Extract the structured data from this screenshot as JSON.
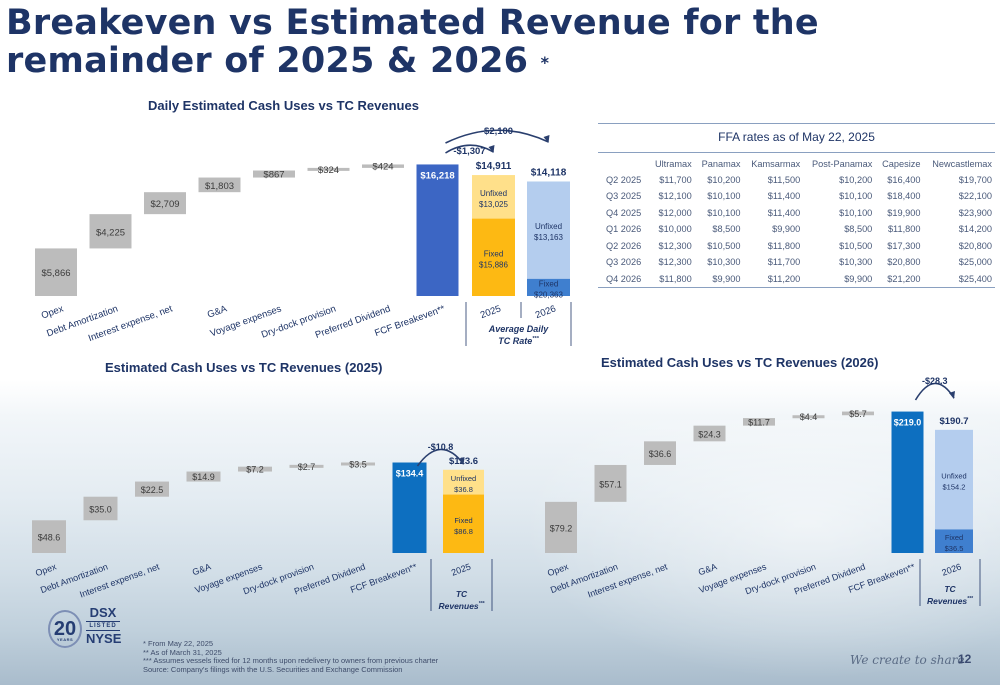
{
  "page": {
    "title_line1": "Breakeven vs Estimated Revenue for the",
    "title_line2": "remainder of 2025 & 2026",
    "title_mark": "*",
    "tagline": "We create to share",
    "page_number": "12",
    "notes": [
      "* From May 22, 2025",
      "** As of March 31, 2025",
      "*** Assumes vessels fixed for 12 months upon redelivery to owners from previous charter",
      "Source: Company's filings with the U.S. Securities and Exchange Commission"
    ],
    "logo": {
      "years": "20",
      "years_caption": "YEARS",
      "ticker": "DSX",
      "listed": "LISTED",
      "exchange": "NYSE"
    }
  },
  "ffa": {
    "title": "FFA rates as of May 22, 2025",
    "columns": [
      "",
      "Ultramax",
      "Panamax",
      "Kamsarmax",
      "Post-Panamax",
      "Capesize",
      "Newcastlemax"
    ],
    "rows": [
      [
        "Q2 2025",
        "$11,700",
        "$10,200",
        "$11,500",
        "$10,200",
        "$16,400",
        "$19,700"
      ],
      [
        "Q3 2025",
        "$12,100",
        "$10,100",
        "$11,400",
        "$10,100",
        "$18,400",
        "$22,100"
      ],
      [
        "Q4 2025",
        "$12,000",
        "$10,100",
        "$11,400",
        "$10,100",
        "$19,900",
        "$23,900"
      ],
      [
        "Q1 2026",
        "$10,000",
        "$8,500",
        "$9,900",
        "$8,500",
        "$11,800",
        "$14,200"
      ],
      [
        "Q2 2026",
        "$12,300",
        "$10,500",
        "$11,800",
        "$10,500",
        "$17,300",
        "$20,800"
      ],
      [
        "Q3 2026",
        "$12,300",
        "$10,300",
        "$11,700",
        "$10,300",
        "$20,800",
        "$25,000"
      ],
      [
        "Q4 2026",
        "$11,800",
        "$9,900",
        "$11,200",
        "$9,900",
        "$21,200",
        "$25,400"
      ]
    ]
  },
  "colors": {
    "cost": "#bcbcbc",
    "breakeven": "#3c66c4",
    "breakeven_dark": "#0d6fc0",
    "fixed": "#fdb913",
    "unfixed": "#ffe08a",
    "fixed_blue": "#3f7fcf",
    "unfixed_blue": "#b4cdee",
    "arc": "#2a3f6e",
    "text": "#1e3466"
  },
  "chart_data": [
    {
      "type": "bar",
      "subtype": "waterfall",
      "title": "Daily Estimated Cash Uses  vs TC Revenues",
      "categories": [
        "Opex",
        "Debt Amortization",
        "Interest expense, net",
        "G&A",
        "Voyage expenses",
        "Dry-dock provision",
        "Preferred Dividend",
        "FCF Breakeven**"
      ],
      "values": [
        5866,
        4225,
        2709,
        1803,
        867,
        324,
        424,
        16218
      ],
      "value_labels": [
        "$5,866",
        "$4,225",
        "$2,709",
        "$1,803",
        "$867",
        "$324",
        "$424",
        "$16,218"
      ],
      "total_index": 7,
      "ylim": [
        0,
        18000
      ],
      "revenue_group_label": "Average Daily TC Rate***",
      "revenues": [
        {
          "category": "2025",
          "total": 14911,
          "total_label": "$14,911",
          "fixed": 15886,
          "fixed_caption": "Fixed",
          "fixed_label": "$15,886",
          "unfixed": 13025,
          "unfixed_caption": "Unfixed",
          "unfixed_label": "$13,025",
          "fixed_share": 0.64,
          "scheme": "yellow"
        },
        {
          "category": "2026",
          "total": 14118,
          "total_label": "$14,118",
          "fixed": 20363,
          "fixed_caption": "Fixed",
          "fixed_label": "$20,363",
          "unfixed": 13163,
          "unfixed_caption": "Unfixed",
          "unfixed_label": "$13,163",
          "fixed_share": 0.15,
          "scheme": "blue"
        }
      ],
      "arrows": [
        {
          "from_revenue_index": -1,
          "to_revenue_index": 0,
          "label": "-$1,307"
        },
        {
          "from_revenue_index": -1,
          "to_revenue_index": 1,
          "label": "-$2,100"
        }
      ]
    },
    {
      "type": "bar",
      "subtype": "waterfall",
      "title": "Estimated Cash Uses vs TC Revenues (2025)",
      "categories": [
        "Opex",
        "Debt Amortization",
        "Interest expense, net",
        "G&A",
        "Voyage expenses",
        "Dry-dock provision",
        "Preferred Dividend",
        "FCF Breakeven**"
      ],
      "values": [
        48.6,
        35.0,
        22.5,
        14.9,
        7.2,
        2.7,
        3.5,
        134.4
      ],
      "value_labels": [
        "$48.6",
        "$35.0",
        "$22.5",
        "$14.9",
        "$7.2",
        "$2.7",
        "$3.5",
        "$134.4"
      ],
      "total_index": 7,
      "ylim": [
        0,
        150
      ],
      "revenue_group_label": "TC Revenues***",
      "revenues": [
        {
          "category": "2025",
          "total": 123.6,
          "total_label": "$123.6",
          "fixed": 86.8,
          "fixed_caption": "Fixed",
          "fixed_label": "$86.8",
          "unfixed": 36.8,
          "unfixed_caption": "Unfixed",
          "unfixed_label": "$36.8",
          "scheme": "yellow"
        }
      ],
      "arrows": [
        {
          "from_revenue_index": -1,
          "to_revenue_index": 0,
          "label": "-$10.8"
        }
      ]
    },
    {
      "type": "bar",
      "subtype": "waterfall",
      "title": "Estimated Cash Uses vs TC Revenues (2026)",
      "categories": [
        "Opex",
        "Debt Amortization",
        "Interest expense, net",
        "G&A",
        "Voyage expenses",
        "Dry-dock provision",
        "Preferred Dividend",
        "FCF Breakeven**"
      ],
      "values": [
        79.2,
        57.1,
        36.6,
        24.3,
        11.7,
        4.4,
        5.7,
        219.0
      ],
      "value_labels": [
        "$79.2",
        "$57.1",
        "$36.6",
        "$24.3",
        "$11.7",
        "$4.4",
        "$5.7",
        "$219.0"
      ],
      "total_index": 7,
      "ylim": [
        0,
        240
      ],
      "revenue_group_label": "TC Revenues***",
      "revenues": [
        {
          "category": "2026",
          "total": 190.7,
          "total_label": "$190.7",
          "fixed": 36.5,
          "fixed_caption": "Fixed",
          "fixed_label": "$36.5",
          "unfixed": 154.2,
          "unfixed_caption": "Unfixed",
          "unfixed_label": "$154.2",
          "scheme": "blue"
        }
      ],
      "arrows": [
        {
          "from_revenue_index": -1,
          "to_revenue_index": 0,
          "label": "-$28.3"
        }
      ]
    }
  ]
}
